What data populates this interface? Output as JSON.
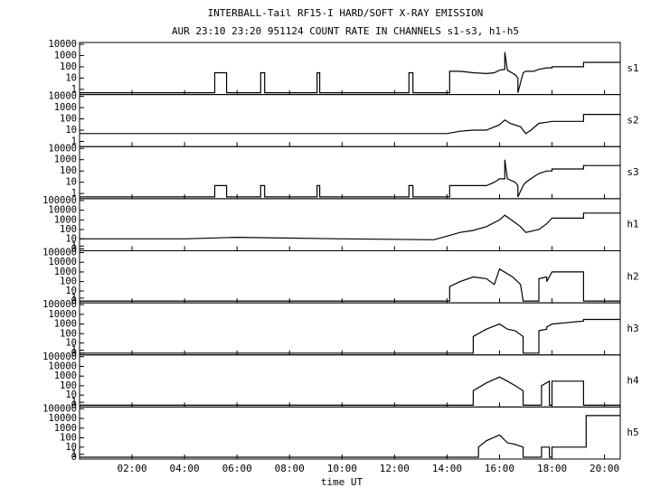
{
  "chart_data": [
    {
      "type": "line",
      "title": "INTERBALL-Tail RF15-I HARD/SOFT X-RAY EMISSION",
      "subtitle": "AUR 23:10 23:20 951124  COUNT RATE IN CHANNELS s1-s3, h1-h5",
      "label": "s1",
      "yscale": "log",
      "xlim": [
        0,
        20.6
      ],
      "xticks": [
        {
          "value": 2,
          "label": "02:00"
        },
        {
          "value": 4,
          "label": "04:00"
        },
        {
          "value": 6,
          "label": "06:00"
        },
        {
          "value": 8,
          "label": "08:00"
        },
        {
          "value": 10,
          "label": "10:00"
        },
        {
          "value": 12,
          "label": "12:00"
        },
        {
          "value": 14,
          "label": "14:00"
        },
        {
          "value": 16,
          "label": "16:00"
        },
        {
          "value": 18,
          "label": "18:00"
        },
        {
          "value": 20,
          "label": "20:00"
        }
      ],
      "ylim": [
        0.5,
        10000
      ],
      "yticks": [
        1,
        10,
        100,
        1000,
        10000
      ],
      "x": [
        0,
        5.15,
        5.15,
        5.6,
        5.6,
        6.9,
        6.9,
        7.05,
        7.05,
        9.05,
        9.05,
        9.15,
        9.15,
        12.55,
        12.55,
        12.7,
        12.7,
        14.1,
        14.1,
        14.5,
        15,
        15.5,
        15.8,
        16,
        16.2,
        16.2,
        16.3,
        16.6,
        16.7,
        16.7,
        16.9,
        17.0,
        17.3,
        17.5,
        17.8,
        18,
        18,
        19.2,
        19.2,
        20.6
      ],
      "values": [
        0.5,
        0.5,
        30,
        30,
        0.5,
        0.5,
        30,
        30,
        0.5,
        0.5,
        30,
        30,
        0.5,
        0.5,
        30,
        30,
        0.5,
        0.5,
        40,
        40,
        30,
        25,
        30,
        50,
        60,
        2000,
        50,
        20,
        10,
        0.5,
        30,
        40,
        40,
        60,
        80,
        80,
        100,
        100,
        250,
        250
      ]
    },
    {
      "type": "line",
      "label": "s2",
      "yscale": "log",
      "xlim": [
        0,
        20.6
      ],
      "xticks": [
        {
          "value": 2,
          "label": "02:00"
        },
        {
          "value": 4,
          "label": "04:00"
        },
        {
          "value": 6,
          "label": "06:00"
        },
        {
          "value": 8,
          "label": "08:00"
        },
        {
          "value": 10,
          "label": "10:00"
        },
        {
          "value": 12,
          "label": "12:00"
        },
        {
          "value": 14,
          "label": "14:00"
        },
        {
          "value": 16,
          "label": "16:00"
        },
        {
          "value": 18,
          "label": "18:00"
        },
        {
          "value": 20,
          "label": "20:00"
        }
      ],
      "ylim": [
        0.5,
        10000
      ],
      "yticks": [
        1,
        10,
        100,
        1000,
        10000
      ],
      "x": [
        0,
        2,
        4,
        6,
        8,
        10,
        12,
        14,
        14.5,
        15,
        15.5,
        16,
        16.2,
        16.4,
        16.8,
        17,
        17.2,
        17.5,
        17.8,
        18,
        19.2,
        19.2,
        20.6
      ],
      "values": [
        5,
        5,
        5,
        5,
        5,
        5,
        5,
        5,
        8,
        10,
        10,
        30,
        80,
        40,
        20,
        5,
        10,
        40,
        50,
        60,
        60,
        250,
        250
      ]
    },
    {
      "type": "line",
      "label": "s3",
      "yscale": "log",
      "xlim": [
        0,
        20.6
      ],
      "xticks": [
        {
          "value": 2,
          "label": "02:00"
        },
        {
          "value": 4,
          "label": "04:00"
        },
        {
          "value": 6,
          "label": "06:00"
        },
        {
          "value": 8,
          "label": "08:00"
        },
        {
          "value": 10,
          "label": "10:00"
        },
        {
          "value": 12,
          "label": "12:00"
        },
        {
          "value": 14,
          "label": "14:00"
        },
        {
          "value": 16,
          "label": "16:00"
        },
        {
          "value": 18,
          "label": "18:00"
        },
        {
          "value": 20,
          "label": "20:00"
        }
      ],
      "ylim": [
        0.5,
        10000
      ],
      "yticks": [
        1,
        10,
        100,
        1000,
        10000
      ],
      "x": [
        0,
        5.15,
        5.15,
        5.6,
        5.6,
        6.9,
        6.9,
        7.05,
        7.05,
        9.05,
        9.05,
        9.15,
        9.15,
        12.55,
        12.55,
        12.7,
        12.7,
        14.1,
        14.1,
        14.5,
        15,
        15.5,
        15.8,
        16,
        16.2,
        16.2,
        16.3,
        16.6,
        16.7,
        16.7,
        16.9,
        17.0,
        17.3,
        17.5,
        17.8,
        18,
        18,
        19.2,
        19.2,
        20.6
      ],
      "values": [
        0.5,
        0.5,
        5,
        5,
        0.5,
        0.5,
        5,
        5,
        0.5,
        0.5,
        5,
        5,
        0.5,
        0.5,
        5,
        5,
        0.5,
        0.5,
        5,
        5,
        5,
        5,
        10,
        20,
        20,
        1000,
        20,
        10,
        5,
        0.5,
        5,
        10,
        30,
        60,
        100,
        100,
        150,
        150,
        300,
        300
      ]
    },
    {
      "type": "line",
      "label": "h1",
      "yscale": "symlog",
      "xlim": [
        0,
        20.6
      ],
      "xticks": [
        {
          "value": 2,
          "label": "02:00"
        },
        {
          "value": 4,
          "label": "04:00"
        },
        {
          "value": 6,
          "label": "06:00"
        },
        {
          "value": 8,
          "label": "08:00"
        },
        {
          "value": 10,
          "label": "10:00"
        },
        {
          "value": 12,
          "label": "12:00"
        },
        {
          "value": 14,
          "label": "14:00"
        },
        {
          "value": 16,
          "label": "16:00"
        },
        {
          "value": 18,
          "label": "18:00"
        },
        {
          "value": 20,
          "label": "20:00"
        }
      ],
      "ylim": [
        0,
        100000
      ],
      "yticks": [
        0,
        1,
        10,
        100,
        1000,
        10000,
        100000
      ],
      "x": [
        0,
        4,
        6,
        10,
        13.5,
        14,
        14.5,
        15,
        15.5,
        16,
        16.2,
        16.5,
        16.8,
        17,
        17.5,
        17.8,
        18,
        19.2,
        19.2,
        20.6
      ],
      "values": [
        10,
        10,
        15,
        10,
        8,
        20,
        50,
        80,
        200,
        1000,
        3000,
        800,
        200,
        50,
        100,
        400,
        1500,
        1500,
        5000,
        5000
      ]
    },
    {
      "type": "line",
      "label": "h2",
      "yscale": "symlog",
      "xlim": [
        0,
        20.6
      ],
      "xticks": [
        {
          "value": 2,
          "label": "02:00"
        },
        {
          "value": 4,
          "label": "04:00"
        },
        {
          "value": 6,
          "label": "06:00"
        },
        {
          "value": 8,
          "label": "08:00"
        },
        {
          "value": 10,
          "label": "10:00"
        },
        {
          "value": 12,
          "label": "12:00"
        },
        {
          "value": 14,
          "label": "14:00"
        },
        {
          "value": 16,
          "label": "16:00"
        },
        {
          "value": 18,
          "label": "18:00"
        },
        {
          "value": 20,
          "label": "20:00"
        }
      ],
      "ylim": [
        0,
        100000
      ],
      "yticks": [
        0,
        1,
        10,
        100,
        1000,
        10000,
        100000
      ],
      "x": [
        0,
        14.1,
        14.1,
        14.5,
        15,
        15.5,
        15.8,
        16,
        16.5,
        16.8,
        16.9,
        16.9,
        17.3,
        17.5,
        17.5,
        17.8,
        17.8,
        18,
        18,
        19.2,
        19.2,
        20.6
      ],
      "values": [
        0,
        0,
        30,
        100,
        300,
        200,
        50,
        2000,
        300,
        50,
        0,
        0,
        0,
        0,
        200,
        300,
        100,
        1000,
        1000,
        1000,
        0,
        0
      ]
    },
    {
      "type": "line",
      "label": "h3",
      "yscale": "symlog",
      "xlim": [
        0,
        20.6
      ],
      "xticks": [
        {
          "value": 2,
          "label": "02:00"
        },
        {
          "value": 4,
          "label": "04:00"
        },
        {
          "value": 6,
          "label": "06:00"
        },
        {
          "value": 8,
          "label": "08:00"
        },
        {
          "value": 10,
          "label": "10:00"
        },
        {
          "value": 12,
          "label": "12:00"
        },
        {
          "value": 14,
          "label": "14:00"
        },
        {
          "value": 16,
          "label": "16:00"
        },
        {
          "value": 18,
          "label": "18:00"
        },
        {
          "value": 20,
          "label": "20:00"
        }
      ],
      "ylim": [
        0,
        100000
      ],
      "yticks": [
        0,
        1,
        10,
        100,
        1000,
        10000,
        100000
      ],
      "x": [
        0,
        15,
        15,
        15.5,
        16,
        16.3,
        16.6,
        16.9,
        16.9,
        17.5,
        17.5,
        17.8,
        17.8,
        18,
        18,
        19.2,
        19.2,
        20.6
      ],
      "values": [
        0,
        0,
        50,
        300,
        1000,
        300,
        200,
        50,
        0,
        0,
        200,
        300,
        500,
        1000,
        1000,
        2000,
        3000,
        3000
      ]
    },
    {
      "type": "line",
      "label": "h4",
      "yscale": "symlog",
      "xlim": [
        0,
        20.6
      ],
      "xticks": [
        {
          "value": 2,
          "label": "02:00"
        },
        {
          "value": 4,
          "label": "04:00"
        },
        {
          "value": 6,
          "label": "06:00"
        },
        {
          "value": 8,
          "label": "08:00"
        },
        {
          "value": 10,
          "label": "10:00"
        },
        {
          "value": 12,
          "label": "12:00"
        },
        {
          "value": 14,
          "label": "14:00"
        },
        {
          "value": 16,
          "label": "16:00"
        },
        {
          "value": 18,
          "label": "18:00"
        },
        {
          "value": 20,
          "label": "20:00"
        }
      ],
      "ylim": [
        0,
        100000
      ],
      "yticks": [
        0,
        1,
        10,
        100,
        1000,
        10000,
        100000
      ],
      "x": [
        0,
        15,
        15,
        15.5,
        16,
        16.3,
        16.6,
        16.9,
        16.9,
        17.6,
        17.6,
        17.9,
        17.9,
        18,
        18,
        19.2,
        19.2,
        20.6
      ],
      "values": [
        0,
        0,
        30,
        200,
        800,
        300,
        100,
        30,
        0,
        0,
        100,
        300,
        0,
        0,
        300,
        300,
        0,
        0
      ]
    },
    {
      "type": "line",
      "label": "h5",
      "yscale": "symlog",
      "x_label": "time UT",
      "xlim": [
        0,
        20.6
      ],
      "xticks": [
        {
          "value": 2,
          "label": "02:00"
        },
        {
          "value": 4,
          "label": "04:00"
        },
        {
          "value": 6,
          "label": "06:00"
        },
        {
          "value": 8,
          "label": "08:00"
        },
        {
          "value": 10,
          "label": "10:00"
        },
        {
          "value": 12,
          "label": "12:00"
        },
        {
          "value": 14,
          "label": "14:00"
        },
        {
          "value": 16,
          "label": "16:00"
        },
        {
          "value": 18,
          "label": "18:00"
        },
        {
          "value": 20,
          "label": "20:00"
        }
      ],
      "ylim": [
        0,
        100000
      ],
      "yticks": [
        0,
        1,
        10,
        100,
        1000,
        10000,
        100000
      ],
      "x": [
        0,
        15.2,
        15.2,
        15.5,
        16,
        16.3,
        16.6,
        16.9,
        16.9,
        17.6,
        17.6,
        17.9,
        17.9,
        18,
        18,
        19.3,
        19.3,
        20.6
      ],
      "values": [
        0,
        0,
        10,
        50,
        200,
        30,
        20,
        10,
        0,
        0,
        10,
        10,
        0,
        0,
        10,
        10,
        20000,
        20000
      ]
    }
  ]
}
